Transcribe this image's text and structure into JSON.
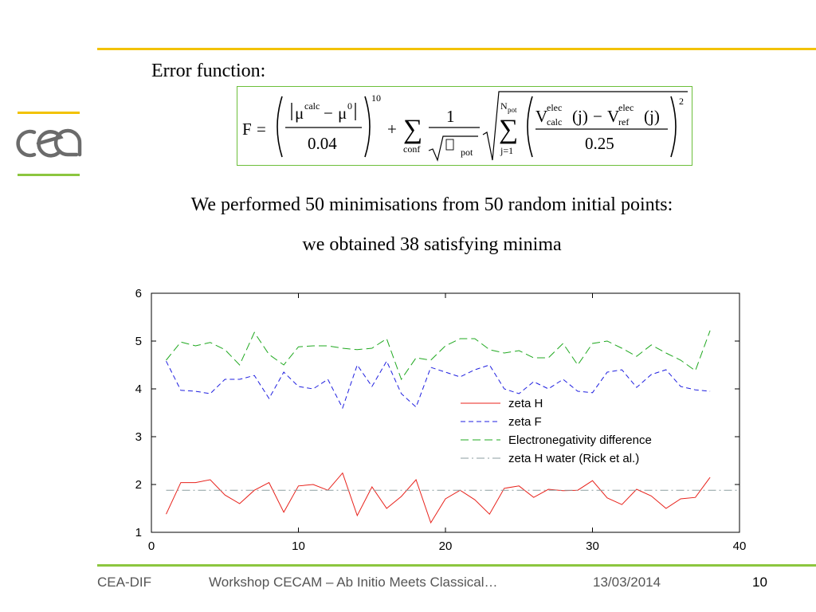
{
  "slide": {
    "error_label": "Error function:",
    "statement_1": "We performed 50 minimisations from 50 random initial points:",
    "statement_2": "we obtained 38 satisfying minima"
  },
  "formula": {
    "F": "F",
    "eq": "=",
    "mu": "μ",
    "calc": "calc",
    "minus": "−",
    "zero": "0",
    "denom1": "0.04",
    "exp10": "10",
    "plus": "+",
    "sigma": "∑",
    "conf": "conf",
    "one": "1",
    "pot": "pot",
    "N": "N",
    "jeq1": "j=1",
    "V": "V",
    "elec": "elec",
    "ref": "ref",
    "jarg": "(j)",
    "denom2": "0.25",
    "exp2": "2"
  },
  "footer": {
    "organization": "CEA-DIF",
    "event": "Workshop CECAM – Ab Initio Meets Classical…",
    "date": "13/03/2014",
    "page": "10"
  },
  "colors": {
    "zeta_h": "#e8221b",
    "zeta_f": "#1f1fe0",
    "electroneg": "#1fa81f",
    "zeta_h_water": "#8b9ea0"
  },
  "chart_data": {
    "type": "line",
    "xlim": [
      0,
      40
    ],
    "ylim": [
      1,
      6
    ],
    "xticks": [
      0,
      10,
      20,
      30,
      40
    ],
    "yticks": [
      1,
      2,
      3,
      4,
      5,
      6
    ],
    "grid": false,
    "legend_position": "center-right",
    "series": [
      {
        "name": "zeta H",
        "style": "solid",
        "color_key": "zeta_h",
        "x": [
          1,
          2,
          3,
          4,
          5,
          6,
          7,
          8,
          9,
          10,
          11,
          12,
          13,
          14,
          15,
          16,
          17,
          18,
          19,
          20,
          21,
          22,
          23,
          24,
          25,
          26,
          27,
          28,
          29,
          30,
          31,
          32,
          33,
          34,
          35,
          36,
          37,
          38
        ],
        "values": [
          1.38,
          2.04,
          2.04,
          2.1,
          1.78,
          1.6,
          1.88,
          2.04,
          1.42,
          1.97,
          2.0,
          1.88,
          2.24,
          1.35,
          1.95,
          1.5,
          1.75,
          2.1,
          1.2,
          1.7,
          1.88,
          1.68,
          1.38,
          1.92,
          1.97,
          1.73,
          1.9,
          1.87,
          1.88,
          2.08,
          1.72,
          1.58,
          1.9,
          1.76,
          1.5,
          1.7,
          1.73,
          2.15
        ]
      },
      {
        "name": "zeta F",
        "style": "dashed",
        "color_key": "zeta_f",
        "x": [
          1,
          2,
          3,
          4,
          5,
          6,
          7,
          8,
          9,
          10,
          11,
          12,
          13,
          14,
          15,
          16,
          17,
          18,
          19,
          20,
          21,
          22,
          23,
          24,
          25,
          26,
          27,
          28,
          29,
          30,
          31,
          32,
          33,
          34,
          35,
          36,
          37,
          38
        ],
        "values": [
          4.58,
          3.97,
          3.95,
          3.9,
          4.2,
          4.2,
          4.28,
          3.8,
          4.35,
          4.05,
          4.0,
          4.2,
          3.6,
          4.5,
          4.05,
          4.58,
          3.9,
          3.62,
          4.45,
          4.35,
          4.25,
          4.4,
          4.5,
          4.0,
          3.9,
          4.15,
          4.0,
          4.2,
          3.95,
          3.92,
          4.35,
          4.4,
          4.03,
          4.3,
          4.4,
          4.05,
          3.98,
          3.95
        ]
      },
      {
        "name": "Electronegativity difference",
        "style": "long-dash",
        "color_key": "electroneg",
        "x": [
          1,
          2,
          3,
          4,
          5,
          6,
          7,
          8,
          9,
          10,
          11,
          12,
          13,
          14,
          15,
          16,
          17,
          18,
          19,
          20,
          21,
          22,
          23,
          24,
          25,
          26,
          27,
          28,
          29,
          30,
          31,
          32,
          33,
          34,
          35,
          36,
          37,
          38
        ],
        "values": [
          4.6,
          4.98,
          4.9,
          4.97,
          4.82,
          4.5,
          5.18,
          4.72,
          4.5,
          4.88,
          4.9,
          4.9,
          4.85,
          4.82,
          4.85,
          5.05,
          4.2,
          4.65,
          4.6,
          4.9,
          5.05,
          5.05,
          4.82,
          4.75,
          4.8,
          4.65,
          4.65,
          4.95,
          4.5,
          4.95,
          5.0,
          4.85,
          4.68,
          4.92,
          4.75,
          4.6,
          4.38,
          5.22
        ]
      },
      {
        "name": "zeta H water (Rick et al.)",
        "style": "dash-dot",
        "color_key": "zeta_h_water",
        "x": [
          1,
          40
        ],
        "values": [
          1.88,
          1.88
        ]
      }
    ]
  }
}
